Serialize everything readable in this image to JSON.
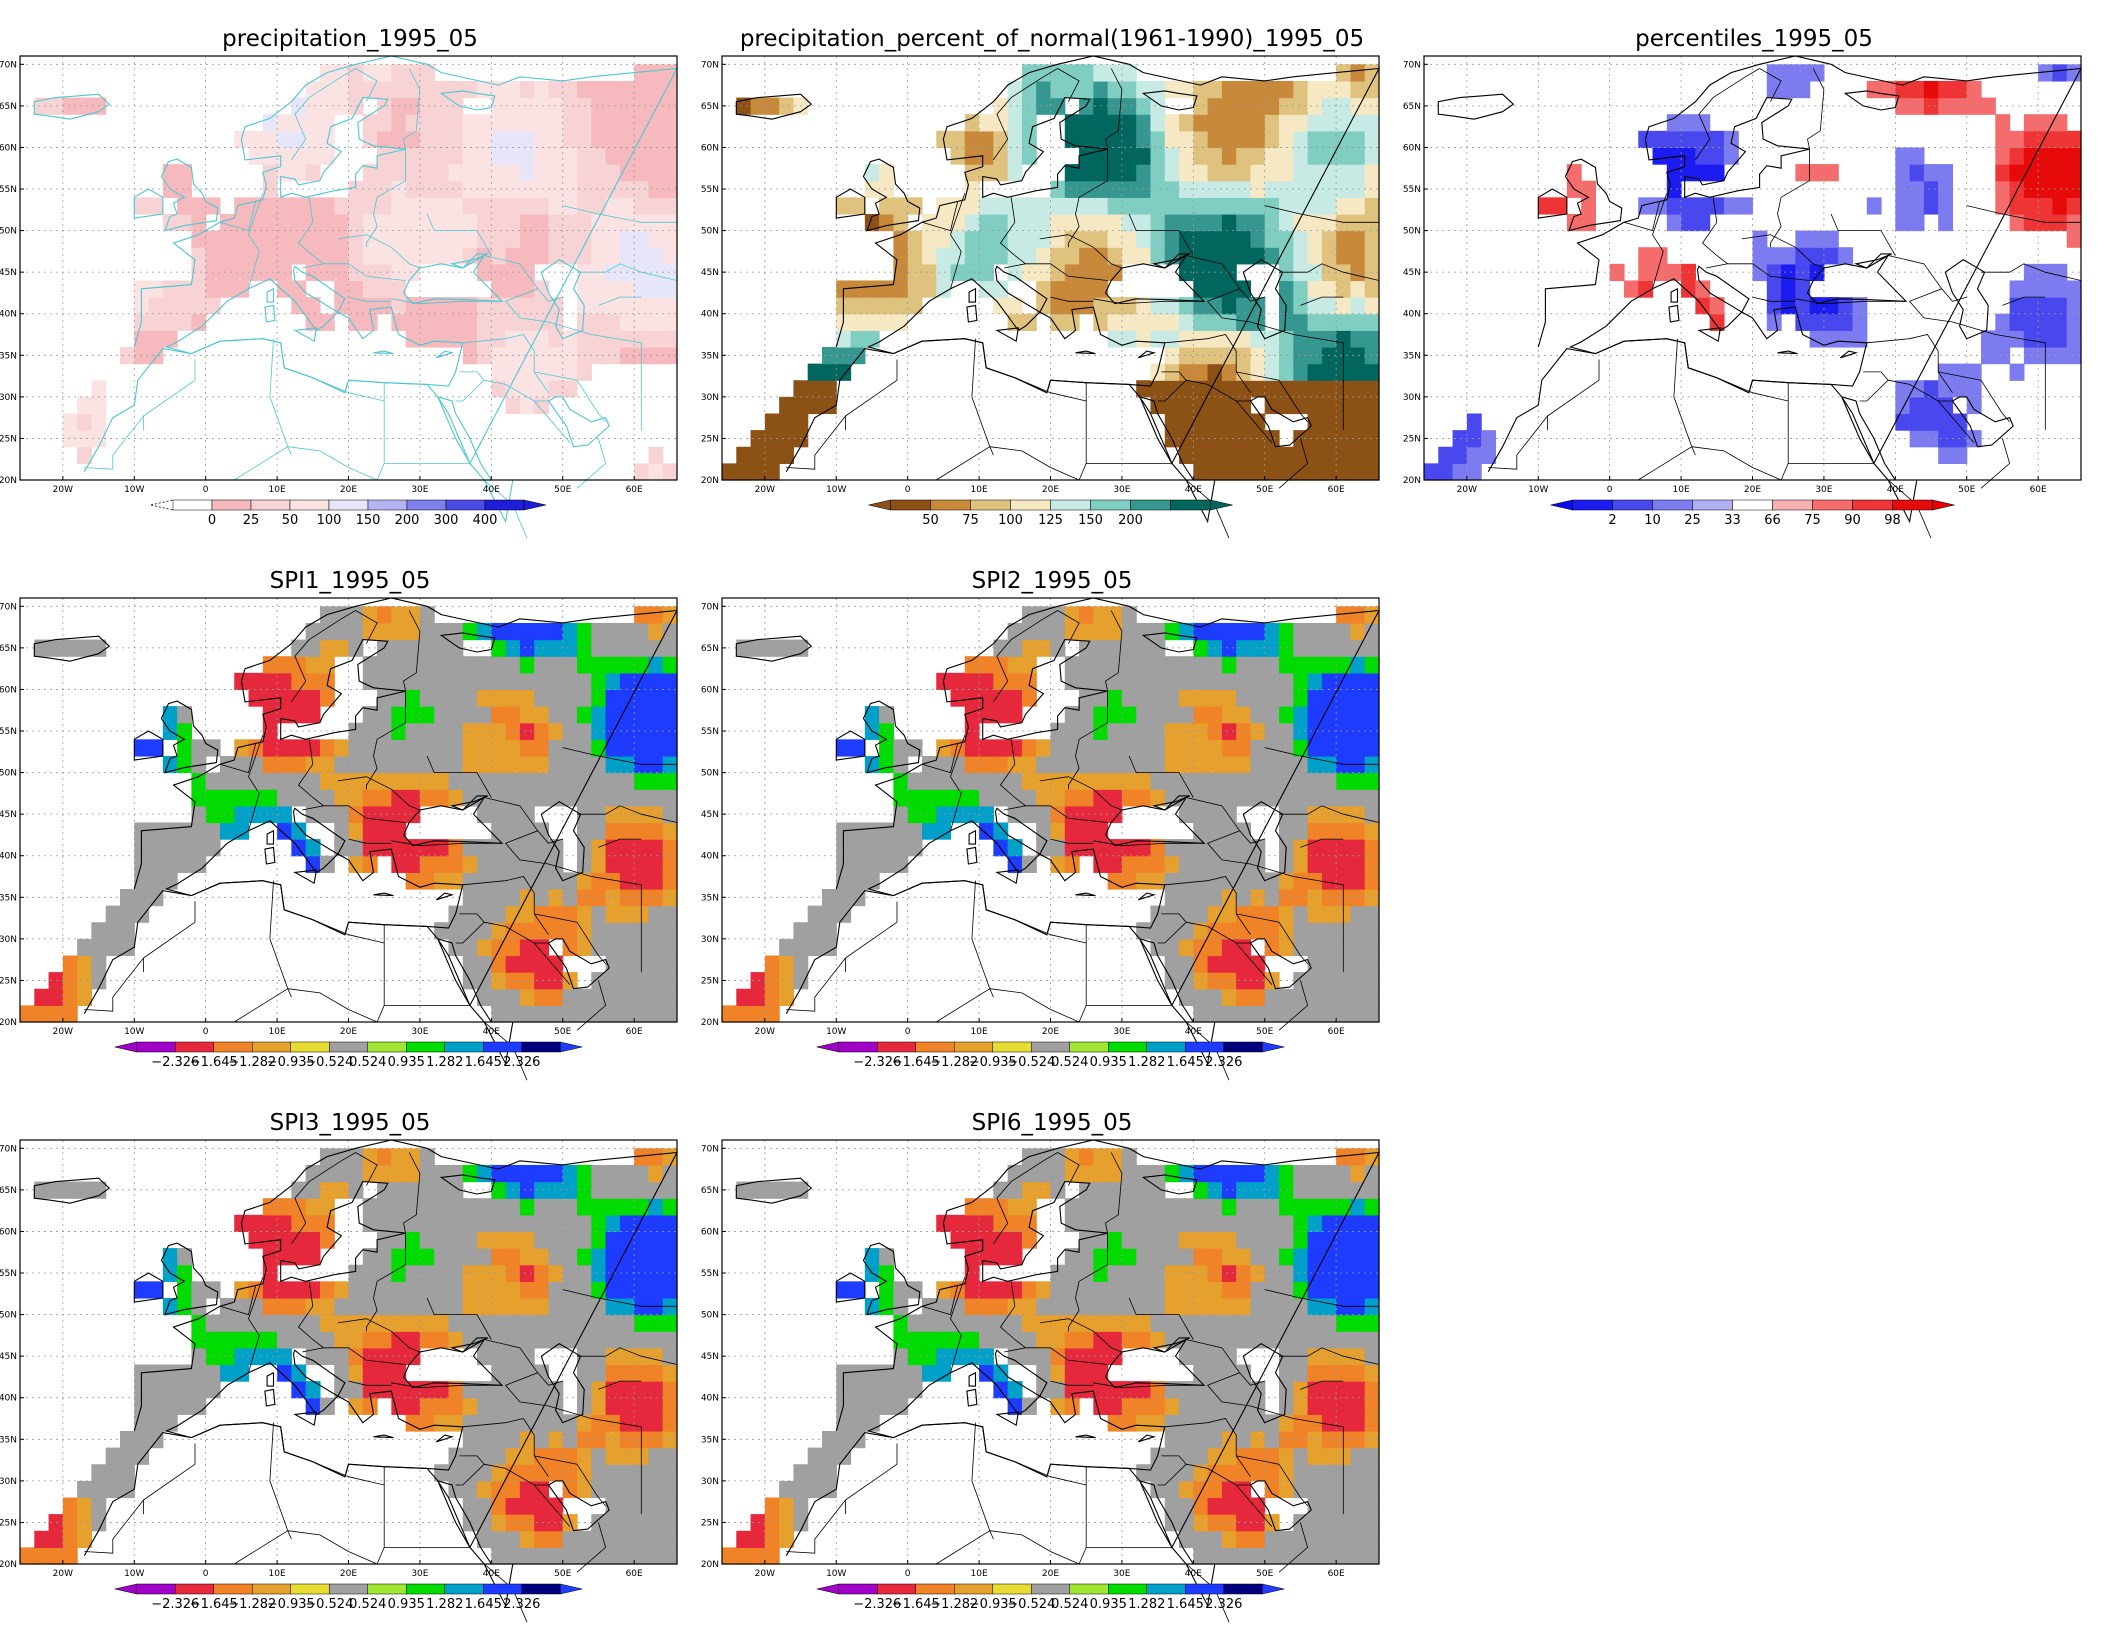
{
  "lat_labels": [
    "20N",
    "25N",
    "30N",
    "35N",
    "40N",
    "45N",
    "50N",
    "55N",
    "60N",
    "65N",
    "70N"
  ],
  "lon_labels": [
    "20W",
    "10W",
    "0",
    "10E",
    "20E",
    "30E",
    "40E",
    "50E",
    "60E"
  ],
  "colors": {
    "water": "#ffffff",
    "coast_precip": "#4cc8d2",
    "coast": "#000000",
    "grid": "#9a9a9a"
  },
  "scales": {
    "precip": {
      "colors": [
        "#ffffff",
        "#f6b9bd",
        "#f8d3d5",
        "#fbe3e4",
        "#e6e6f8",
        "#b4b4f2",
        "#8080ec",
        "#4b4be6",
        "#1e1eda"
      ],
      "labels": [
        "0",
        "25",
        "50",
        "100",
        "150",
        "200",
        "300",
        "400"
      ],
      "under": "",
      "over": "#1e1eda"
    },
    "pct_normal": {
      "colors": [
        "#8c5114",
        "#c8893a",
        "#dfc27d",
        "#f6e8c3",
        "#c7eae5",
        "#80cdc1",
        "#35978f",
        "#01665e"
      ],
      "labels": [
        "50",
        "75",
        "100",
        "125",
        "150",
        "200"
      ],
      "under": "#8c5114",
      "over": "#01665e"
    },
    "percentiles": {
      "colors": [
        "#1c1cf0",
        "#4848ee",
        "#7c7cf0",
        "#b0b0f4",
        "#ffffff",
        "#f8b0b0",
        "#f46c6c",
        "#ee3434",
        "#e60a0a"
      ],
      "labels": [
        "2",
        "10",
        "25",
        "33",
        "66",
        "75",
        "90",
        "98"
      ],
      "under": "#0a0af0",
      "over": "#e60000"
    },
    "spi": {
      "colors": [
        "#a000c8",
        "#e6283c",
        "#f08228",
        "#e6a02e",
        "#e6dc32",
        "#a0a0a0",
        "#a0e632",
        "#00dc00",
        "#00a0c8",
        "#1e3cff",
        "#00007f"
      ],
      "labels": [
        "-2.326",
        "-1.645",
        "-1.282",
        "-0.935",
        "-0.524",
        "0.524",
        "0.935",
        "1.282",
        "1.645",
        "2.326"
      ],
      "under": "#a000c8",
      "over": "#1e3cff"
    }
  },
  "panels": [
    {
      "id": "precip",
      "title": "precipitation_1995_05",
      "scale": "precip",
      "field": "precip",
      "coast": "cyan"
    },
    {
      "id": "pctnorm",
      "title": "precipitation_percent_of_normal(1961-1990)_1995_05",
      "scale": "pct_normal",
      "field": "pct",
      "coast": "black"
    },
    {
      "id": "perc",
      "title": "percentiles_1995_05",
      "scale": "percentiles",
      "field": "perc",
      "coast": "black"
    },
    {
      "id": "spi1",
      "title": "SPI1_1995_05",
      "scale": "spi",
      "field": "spi1",
      "coast": "black"
    },
    {
      "id": "spi2",
      "title": "SPI2_1995_05",
      "scale": "spi",
      "field": "spi2",
      "coast": "black"
    },
    {
      "id": "spi3",
      "title": "SPI3_1995_05",
      "scale": "spi",
      "field": "spi3",
      "coast": "black"
    },
    {
      "id": "spi6",
      "title": "SPI6_1995_05",
      "scale": "spi",
      "field": "spi6",
      "coast": "black"
    }
  ]
}
